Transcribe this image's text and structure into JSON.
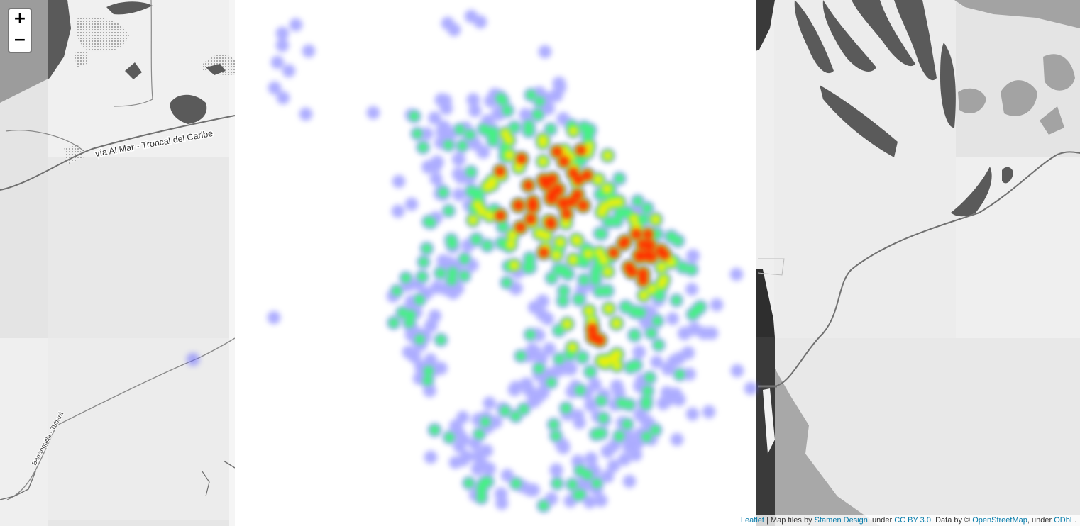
{
  "map": {
    "road_label": "vía Al Mar - Troncal del Caribe",
    "road_label_2": "Barranquilla - Tubará",
    "colors": {
      "land": "#efefef",
      "land_dark": "#e2e2e2",
      "water_dark": "#585858",
      "water_mid": "#9a9a9a",
      "road": "#707070",
      "heat_low": "#6a6aff",
      "heat_mid": "#2fff6a",
      "heat_high": "#ff1a00"
    }
  },
  "zoom": {
    "in_label": "+",
    "out_label": "−"
  },
  "attribution": {
    "leaflet": "Leaflet",
    "sep1": " | Map tiles by ",
    "stamen": "Stamen Design",
    "sep2": ", under ",
    "ccby": "CC BY 3.0",
    "sep3": ". Data by © ",
    "osm": "OpenStreetMap",
    "sep4": ", under ",
    "odbl": "ODbL",
    "end": "."
  }
}
